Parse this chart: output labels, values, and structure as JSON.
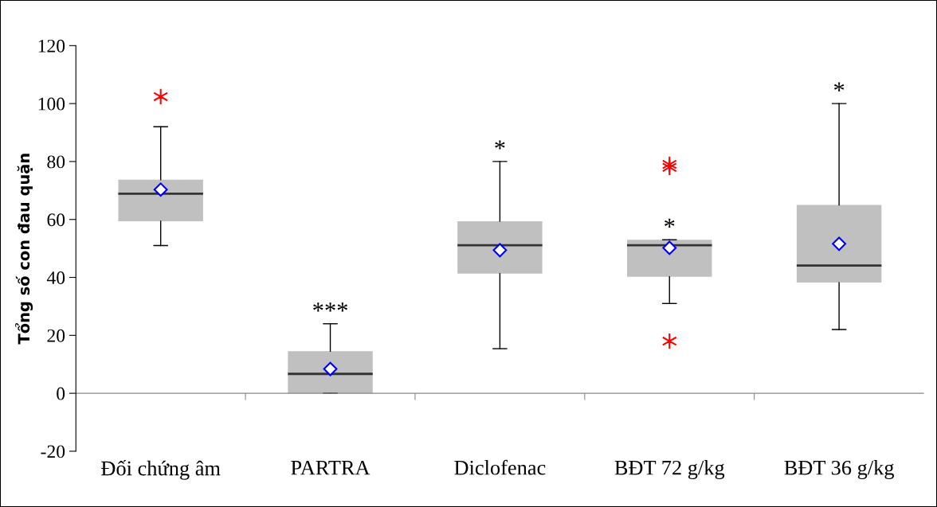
{
  "chart_data": {
    "type": "box",
    "ylabel": "Tổng số con đau quặn",
    "categories": [
      "Đối chứng âm",
      "PARTRA",
      "Diclofenac",
      "BĐT 72 g/kg",
      "BĐT 36 g/kg"
    ],
    "boxes": [
      {
        "low": 51,
        "q1": 59.4,
        "median": 68.9,
        "q3": 73.7,
        "high": 92,
        "mean": 70.3,
        "outliers": [
          102.4
        ]
      },
      {
        "low": 0,
        "q1": 0,
        "median": 6.7,
        "q3": 14.5,
        "high": 24,
        "mean": 8.4
      },
      {
        "low": 15.4,
        "q1": 41.3,
        "median": 51.1,
        "q3": 59.4,
        "high": 80,
        "mean": 49.4
      },
      {
        "low": 31,
        "q1": 40.2,
        "median": 51.1,
        "q3": 53,
        "high": 53,
        "mean": 50.2,
        "outliers": [
          79,
          78,
          18
        ]
      },
      {
        "low": 22,
        "q1": 38.2,
        "median": 44.1,
        "q3": 65,
        "high": 100,
        "mean": 51.6
      }
    ],
    "color": "#c0c0c0",
    "ylim": [
      -20,
      120
    ],
    "yticks": [
      -20,
      0,
      20,
      40,
      60,
      80,
      100,
      120
    ],
    "grid": false,
    "ref_lines": [
      {
        "axis": "y",
        "value": 0,
        "color": "#888888"
      }
    ],
    "annotations": [
      "***",
      "*",
      "*",
      "*"
    ]
  }
}
